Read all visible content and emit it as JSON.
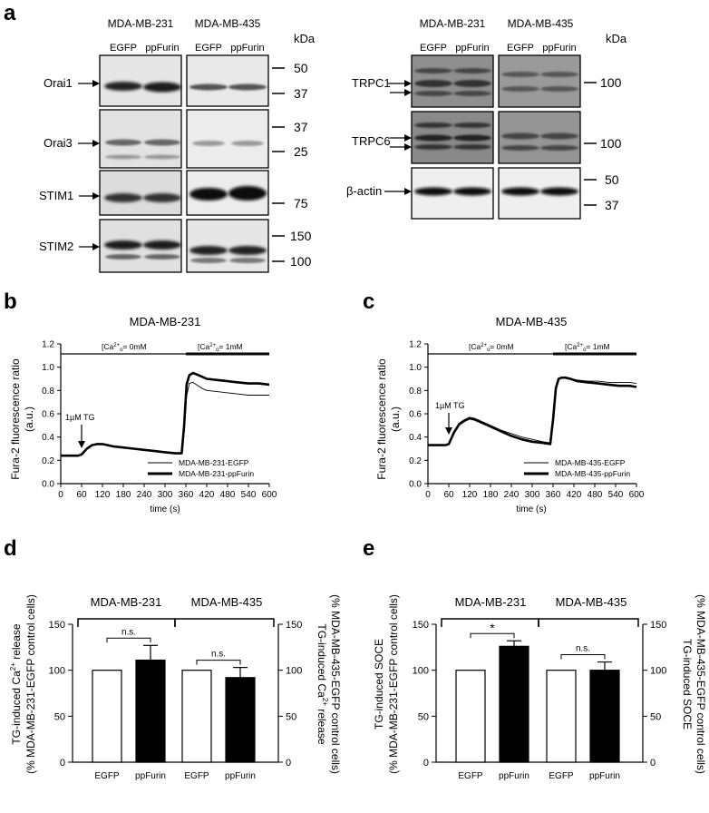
{
  "panel_letters": {
    "a": "a",
    "b": "b",
    "c": "c",
    "d": "d",
    "e": "e"
  },
  "blots": {
    "left": {
      "cell_lines": [
        "MDA-MB-231",
        "MDA-MB-435"
      ],
      "lanes": [
        "EGFP",
        "ppFurin",
        "EGFP",
        "ppFurin"
      ],
      "kda_label": "kDa",
      "rows": [
        {
          "protein": "Orai1",
          "markers": [
            "50",
            "37"
          ]
        },
        {
          "protein": "Orai3",
          "markers": [
            "37",
            "25"
          ]
        },
        {
          "protein": "STIM1",
          "markers": [
            "75"
          ]
        },
        {
          "protein": "STIM2",
          "markers": [
            "150",
            "100"
          ]
        }
      ]
    },
    "right": {
      "cell_lines": [
        "MDA-MB-231",
        "MDA-MB-435"
      ],
      "lanes": [
        "EGFP",
        "ppFurin",
        "EGFP",
        "ppFurin"
      ],
      "kda_label": "kDa",
      "rows": [
        {
          "protein": "TRPC1",
          "markers": [
            "100"
          ]
        },
        {
          "protein": "TRPC6",
          "markers": [
            "100"
          ]
        },
        {
          "protein": "β-actin",
          "markers": [
            "50",
            "37"
          ]
        }
      ]
    }
  },
  "chart_data": [
    {
      "panel": "b",
      "type": "line",
      "title": "MDA-MB-231",
      "xlabel": "time (s)",
      "ylabel": "Fura-2 fluorescence ratio",
      "ylabel2": "(a.u.)",
      "xlim": [
        0,
        600
      ],
      "ylim": [
        0,
        1.2
      ],
      "xticks": [
        0,
        60,
        120,
        180,
        240,
        300,
        360,
        420,
        480,
        540,
        600
      ],
      "yticks": [
        0.0,
        0.2,
        0.4,
        0.6,
        0.8,
        1.0,
        1.2
      ],
      "bar_labels": {
        "zero": "[Ca2+]o= 0mM",
        "one": "[Ca2+]o= 1mM"
      },
      "annotation": "1µM TG",
      "legend_position": "bottom-right",
      "series": [
        {
          "name": "MDA-MB-231-EGFP",
          "style": "thin",
          "x": [
            0,
            50,
            60,
            75,
            90,
            105,
            120,
            135,
            150,
            180,
            210,
            240,
            270,
            300,
            330,
            348,
            355,
            362,
            370,
            380,
            390,
            405,
            420,
            450,
            480,
            510,
            540,
            570,
            600
          ],
          "y": [
            0.24,
            0.24,
            0.25,
            0.3,
            0.33,
            0.34,
            0.34,
            0.33,
            0.32,
            0.31,
            0.3,
            0.29,
            0.28,
            0.27,
            0.26,
            0.26,
            0.45,
            0.75,
            0.86,
            0.87,
            0.85,
            0.82,
            0.8,
            0.79,
            0.78,
            0.77,
            0.76,
            0.76,
            0.76
          ]
        },
        {
          "name": "MDA-MB-231-ppFurin",
          "style": "thick",
          "x": [
            0,
            50,
            60,
            75,
            90,
            105,
            120,
            135,
            150,
            180,
            210,
            240,
            270,
            300,
            330,
            348,
            355,
            362,
            370,
            380,
            390,
            405,
            420,
            450,
            480,
            510,
            540,
            570,
            600
          ],
          "y": [
            0.24,
            0.24,
            0.25,
            0.3,
            0.33,
            0.34,
            0.34,
            0.33,
            0.32,
            0.31,
            0.3,
            0.29,
            0.28,
            0.27,
            0.26,
            0.26,
            0.5,
            0.85,
            0.93,
            0.95,
            0.94,
            0.92,
            0.9,
            0.89,
            0.88,
            0.87,
            0.86,
            0.86,
            0.85
          ]
        }
      ]
    },
    {
      "panel": "c",
      "type": "line",
      "title": "MDA-MB-435",
      "xlabel": "time (s)",
      "ylabel": "Fura-2 fluorescence ratio",
      "ylabel2": "(a.u.)",
      "xlim": [
        0,
        600
      ],
      "ylim": [
        0,
        1.2
      ],
      "xticks": [
        0,
        60,
        120,
        180,
        240,
        300,
        360,
        420,
        480,
        540,
        600
      ],
      "yticks": [
        0.0,
        0.2,
        0.4,
        0.6,
        0.8,
        1.0,
        1.2
      ],
      "bar_labels": {
        "zero": "[Ca2+]o= 0mM",
        "one": "[Ca2+]o= 1mM"
      },
      "annotation": "1µM TG",
      "legend_position": "bottom-right",
      "series": [
        {
          "name": "MDA-MB-435-EGFP",
          "style": "thin",
          "x": [
            0,
            50,
            60,
            75,
            90,
            105,
            120,
            135,
            150,
            180,
            210,
            240,
            270,
            300,
            330,
            352,
            360,
            368,
            376,
            385,
            395,
            410,
            430,
            460,
            490,
            520,
            550,
            580,
            600
          ],
          "y": [
            0.33,
            0.33,
            0.34,
            0.45,
            0.52,
            0.55,
            0.57,
            0.56,
            0.54,
            0.5,
            0.46,
            0.43,
            0.4,
            0.38,
            0.36,
            0.35,
            0.55,
            0.8,
            0.89,
            0.91,
            0.91,
            0.9,
            0.89,
            0.88,
            0.88,
            0.87,
            0.87,
            0.87,
            0.86
          ]
        },
        {
          "name": "MDA-MB-435-ppFurin",
          "style": "thick",
          "x": [
            0,
            50,
            60,
            75,
            90,
            105,
            120,
            135,
            150,
            180,
            210,
            240,
            270,
            300,
            330,
            352,
            360,
            368,
            376,
            385,
            395,
            410,
            430,
            460,
            490,
            520,
            550,
            580,
            600
          ],
          "y": [
            0.33,
            0.33,
            0.34,
            0.44,
            0.51,
            0.54,
            0.56,
            0.55,
            0.53,
            0.49,
            0.45,
            0.41,
            0.38,
            0.36,
            0.35,
            0.34,
            0.55,
            0.82,
            0.9,
            0.91,
            0.91,
            0.9,
            0.88,
            0.87,
            0.86,
            0.85,
            0.84,
            0.84,
            0.83
          ]
        }
      ]
    },
    {
      "panel": "d",
      "type": "bar",
      "group_titles": [
        "MDA-MB-231",
        "MDA-MB-435"
      ],
      "categories": [
        "EGFP",
        "ppFurin",
        "EGFP",
        "ppFurin"
      ],
      "values": [
        100,
        111,
        100,
        92
      ],
      "errors": [
        0,
        16,
        0,
        11
      ],
      "fills": [
        "white",
        "black",
        "white",
        "black"
      ],
      "ylim": [
        0,
        150
      ],
      "yticks": [
        0,
        50,
        100,
        150
      ],
      "ylabel_left_1": "TG-induced Ca",
      "ylabel_left_sup": "2+",
      "ylabel_left_2": " release",
      "ylabel_left_line2": "(% MDA-MB-231-EGFP control cells)",
      "ylabel_right_1": "TG-induced Ca",
      "ylabel_right_sup": "2+",
      "ylabel_right_2": " release",
      "ylabel_right_line2": "(% MDA-MB-435-EGFP control cells)",
      "sig": [
        "n.s.",
        "n.s."
      ]
    },
    {
      "panel": "e",
      "type": "bar",
      "group_titles": [
        "MDA-MB-231",
        "MDA-MB-435"
      ],
      "categories": [
        "EGFP",
        "ppFurin",
        "EGFP",
        "ppFurin"
      ],
      "values": [
        100,
        126,
        100,
        100
      ],
      "errors": [
        0,
        6,
        0,
        9
      ],
      "fills": [
        "white",
        "black",
        "white",
        "black"
      ],
      "ylim": [
        0,
        150
      ],
      "yticks": [
        0,
        50,
        100,
        150
      ],
      "ylabel_left_1": "TG-induced SOCE",
      "ylabel_left_line2": "(% MDA-MB-231-EGFP control cells)",
      "ylabel_right_1": "TG-induced SOCE",
      "ylabel_right_line2": "(% MDA-MB-435-EGFP control cells)",
      "sig": [
        "*",
        "n.s."
      ]
    }
  ]
}
